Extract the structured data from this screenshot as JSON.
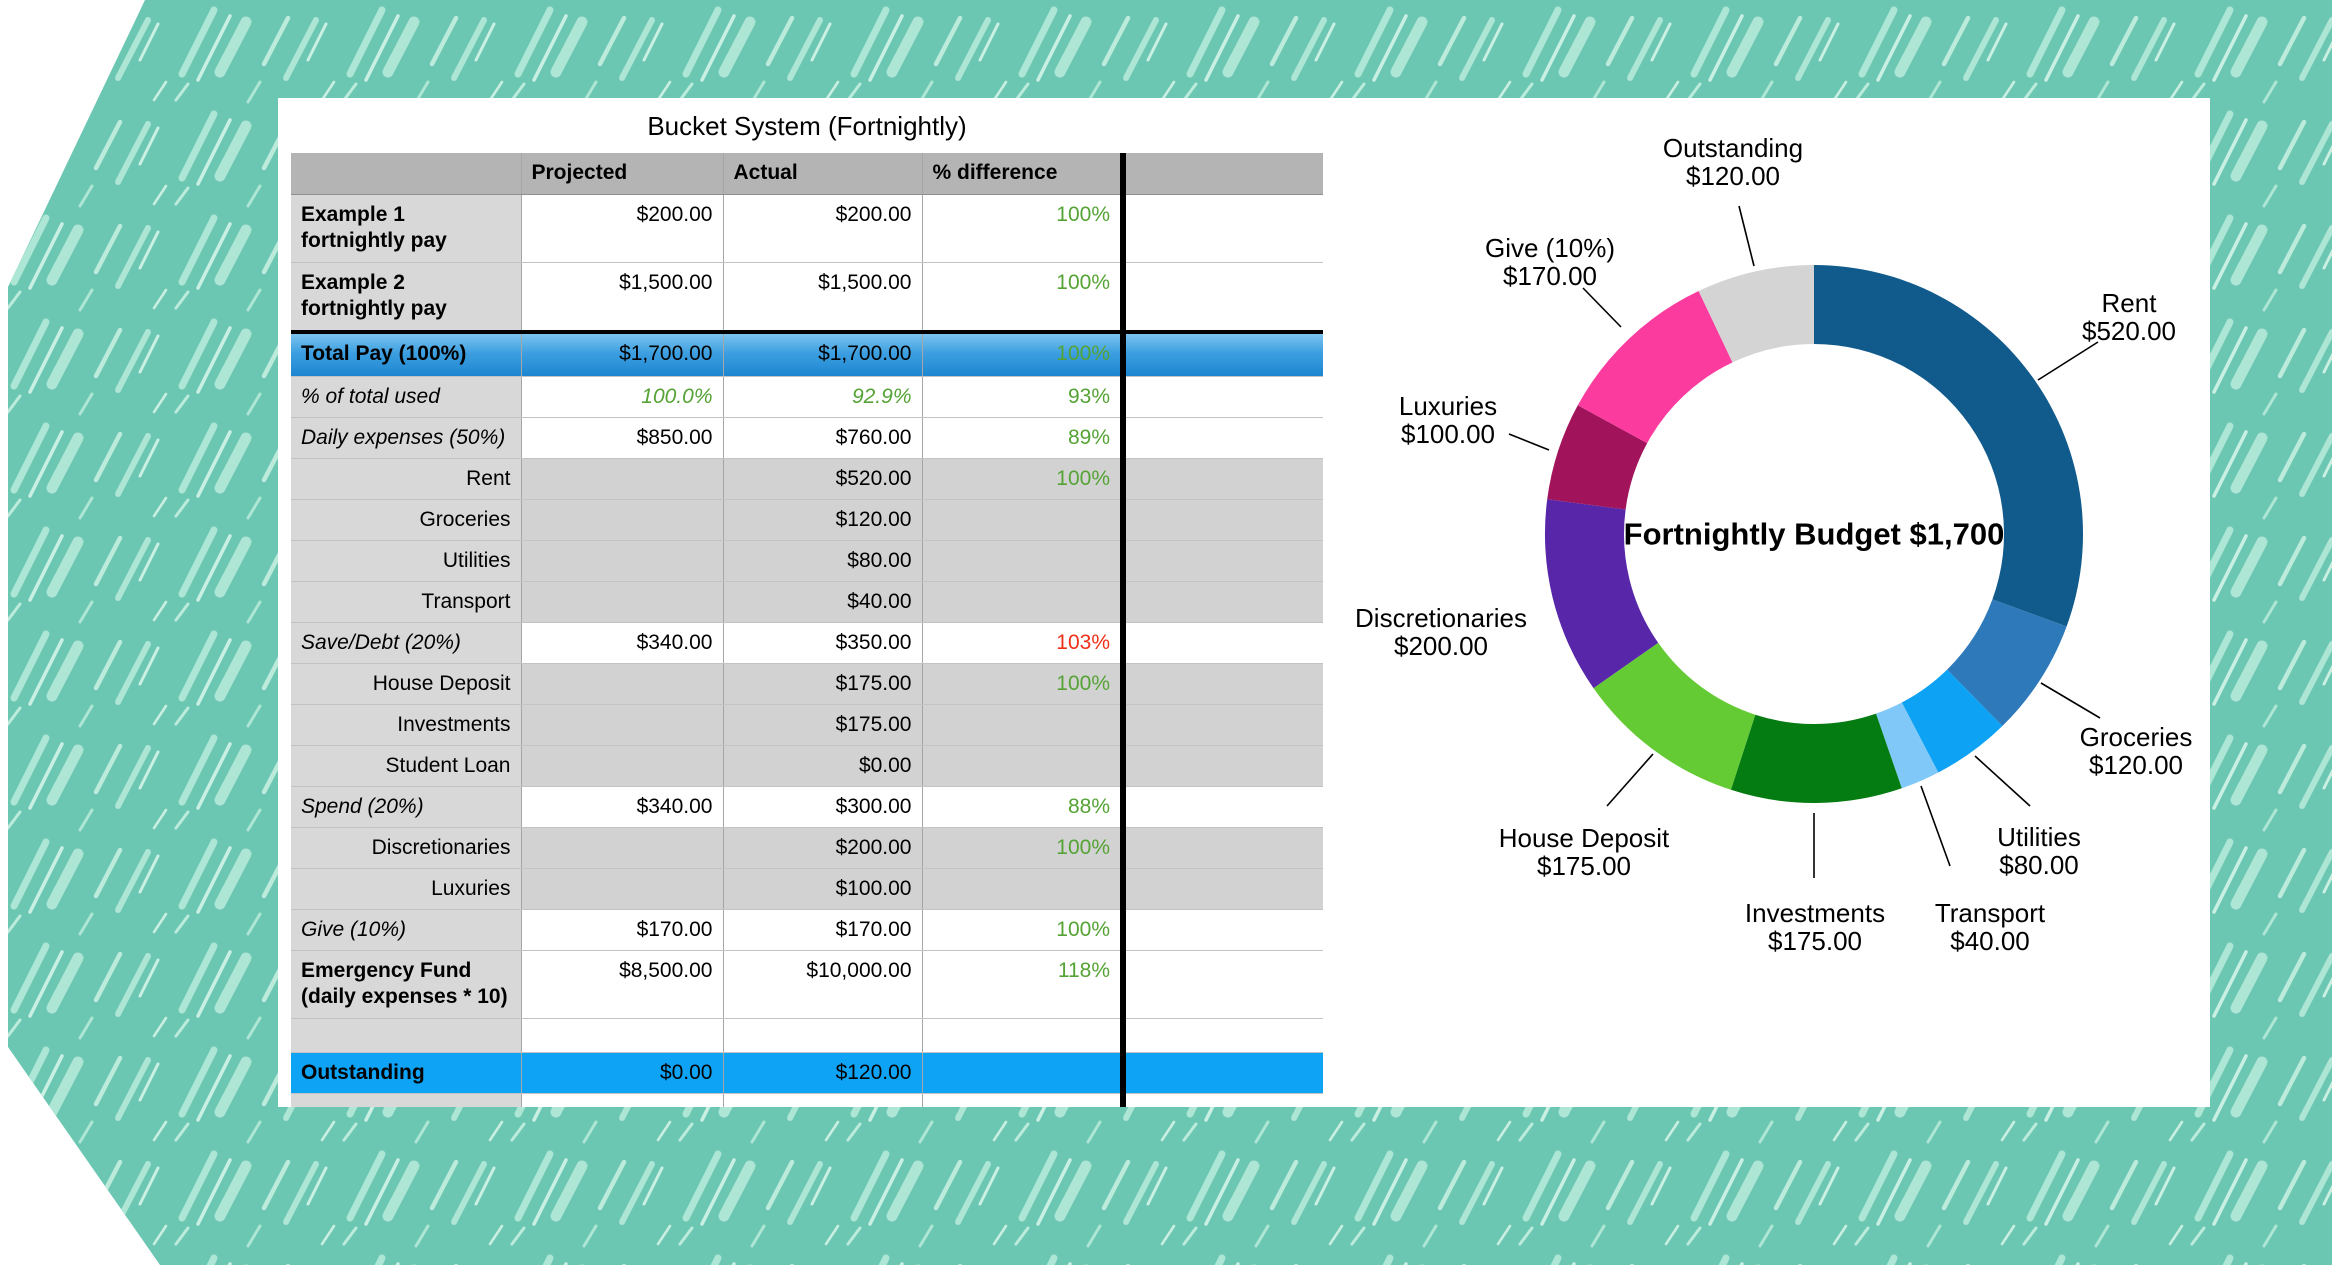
{
  "title": "Bucket System (Fortnightly)",
  "colors": {
    "background_teal": "#6cc7b2",
    "hatch_light": "#aee6d5",
    "hatch_lighter": "#c9f0e2",
    "header_gray": "#b4b4b4",
    "label_gray": "#d8d8d8",
    "cell_gray": "#d2d2d2",
    "total_row_blue_top": "#7cc4f0",
    "total_row_blue_bottom": "#1d86d1",
    "outstanding_row_blue": "#0fa3f5",
    "positive_green": "#55a335",
    "negative_red": "#f03018"
  },
  "table": {
    "columns": [
      "",
      "Projected",
      "Actual",
      "% difference",
      ""
    ],
    "rows": [
      {
        "label": "Example 1 fortnightly pay",
        "label_style": "bold",
        "row_style": "tall",
        "projected": "$200.00",
        "actual": "$200.00",
        "diff": "100%",
        "diff_color": "green",
        "gray_values": false
      },
      {
        "label": "Example 2 fortnightly pay",
        "label_style": "bold",
        "row_style": "tall",
        "projected": "$1,500.00",
        "actual": "$1,500.00",
        "diff": "100%",
        "diff_color": "green",
        "gray_values": false
      },
      {
        "label": "Total Pay (100%)",
        "label_style": "bold",
        "row_style": "total",
        "projected": "$1,700.00",
        "actual": "$1,700.00",
        "diff": "100%",
        "diff_color": "green",
        "gray_values": false
      },
      {
        "label": "% of total used",
        "label_style": "italic",
        "row_style": "std",
        "projected": "100.0%",
        "actual": "92.9%",
        "diff": "93%",
        "diff_color": "green",
        "value_style": "green-italic",
        "gray_values": false
      },
      {
        "label": "Daily expenses (50%)",
        "label_style": "italic",
        "row_style": "std",
        "projected": "$850.00",
        "actual": "$760.00",
        "diff": "89%",
        "diff_color": "green",
        "gray_values": false
      },
      {
        "label": "Rent",
        "label_style": "sub",
        "row_style": "std",
        "projected": "",
        "actual": "$520.00",
        "diff": "100%",
        "diff_color": "green",
        "gray_values": true
      },
      {
        "label": "Groceries",
        "label_style": "sub",
        "row_style": "std",
        "projected": "",
        "actual": "$120.00",
        "diff": "",
        "diff_color": null,
        "gray_values": true
      },
      {
        "label": "Utilities",
        "label_style": "sub",
        "row_style": "std",
        "projected": "",
        "actual": "$80.00",
        "diff": "",
        "diff_color": null,
        "gray_values": true
      },
      {
        "label": "Transport",
        "label_style": "sub",
        "row_style": "std",
        "projected": "",
        "actual": "$40.00",
        "diff": "",
        "diff_color": null,
        "gray_values": true
      },
      {
        "label": "Save/Debt (20%)",
        "label_style": "italic",
        "row_style": "std",
        "projected": "$340.00",
        "actual": "$350.00",
        "diff": "103%",
        "diff_color": "red",
        "gray_values": false
      },
      {
        "label": "House Deposit",
        "label_style": "sub",
        "row_style": "std",
        "projected": "",
        "actual": "$175.00",
        "diff": "100%",
        "diff_color": "green",
        "gray_values": true
      },
      {
        "label": "Investments",
        "label_style": "sub",
        "row_style": "std",
        "projected": "",
        "actual": "$175.00",
        "diff": "",
        "diff_color": null,
        "gray_values": true
      },
      {
        "label": "Student Loan",
        "label_style": "sub",
        "row_style": "std",
        "projected": "",
        "actual": "$0.00",
        "diff": "",
        "diff_color": null,
        "gray_values": true
      },
      {
        "label": "Spend (20%)",
        "label_style": "italic",
        "row_style": "std",
        "projected": "$340.00",
        "actual": "$300.00",
        "diff": "88%",
        "diff_color": "green",
        "gray_values": false
      },
      {
        "label": "Discretionaries",
        "label_style": "sub",
        "row_style": "std",
        "projected": "",
        "actual": "$200.00",
        "diff": "100%",
        "diff_color": "green",
        "gray_values": true
      },
      {
        "label": "Luxuries",
        "label_style": "sub",
        "row_style": "std",
        "projected": "",
        "actual": "$100.00",
        "diff": "",
        "diff_color": null,
        "gray_values": true
      },
      {
        "label": "Give (10%)",
        "label_style": "italic",
        "row_style": "std",
        "projected": "$170.00",
        "actual": "$170.00",
        "diff": "100%",
        "diff_color": "green",
        "gray_values": false
      },
      {
        "label": "Emergency Fund (daily expenses * 10)",
        "label_style": "bold",
        "row_style": "tall",
        "projected": "$8,500.00",
        "actual": "$10,000.00",
        "diff": "118%",
        "diff_color": "green",
        "gray_values": false
      },
      {
        "label": "",
        "label_style": "none",
        "row_style": "empty",
        "projected": "",
        "actual": "",
        "diff": "",
        "diff_color": null,
        "gray_values": false
      },
      {
        "label": "Outstanding",
        "label_style": "bold",
        "row_style": "blue",
        "projected": "$0.00",
        "actual": "$120.00",
        "diff": "",
        "diff_color": null,
        "gray_values": false
      },
      {
        "label": "",
        "label_style": "none",
        "row_style": "partial",
        "projected": "",
        "actual": "",
        "diff": "",
        "diff_color": null,
        "gray_values": false
      }
    ]
  },
  "chart_data": {
    "type": "pie",
    "subtype": "donut",
    "center_label": "Fortnightly Budget $1,700",
    "total": 1700,
    "start_angle_deg": 0,
    "direction": "clockwise",
    "slices": [
      {
        "label": "Rent",
        "value": 520,
        "display": "$520.00",
        "color": "#115a8c"
      },
      {
        "label": "Groceries",
        "value": 120,
        "display": "$120.00",
        "color": "#2e79b9"
      },
      {
        "label": "Utilities",
        "value": 80,
        "display": "$80.00",
        "color": "#0da2f3"
      },
      {
        "label": "Transport",
        "value": 40,
        "display": "$40.00",
        "color": "#7fc8f8"
      },
      {
        "label": "Investments",
        "value": 175,
        "display": "$175.00",
        "color": "#057c11"
      },
      {
        "label": "House Deposit",
        "value": 175,
        "display": "$175.00",
        "color": "#65cb34"
      },
      {
        "label": "Discretionaries",
        "value": 200,
        "display": "$200.00",
        "color": "#5826a9"
      },
      {
        "label": "Luxuries",
        "value": 100,
        "display": "$100.00",
        "color": "#a1145c"
      },
      {
        "label": "Give (10%)",
        "value": 170,
        "display": "$170.00",
        "color": "#fc3b9f"
      },
      {
        "label": "Outstanding",
        "value": 120,
        "display": "$120.00",
        "color": "#d4d4d4"
      }
    ]
  }
}
